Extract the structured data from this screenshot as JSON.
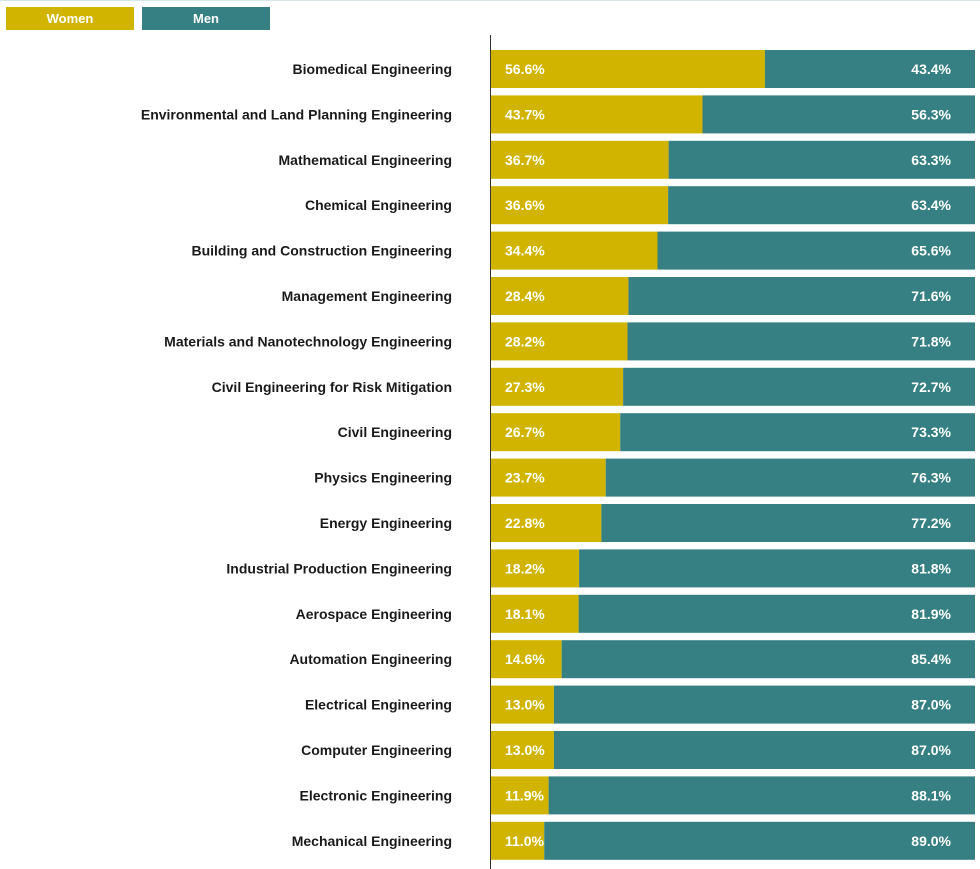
{
  "legend": {
    "women": "Women",
    "men": "Men"
  },
  "colors": {
    "women": "#d1b400",
    "men": "#367f83",
    "axis": "#333333",
    "label": "#1a1a1a",
    "value_text": "#ffffff"
  },
  "chart_data": {
    "type": "bar",
    "orientation": "horizontal",
    "stacked": true,
    "normalized_100": true,
    "categories": [
      "Biomedical Engineering",
      "Environmental and Land Planning Engineering",
      "Mathematical Engineering",
      "Chemical Engineering",
      "Building and Construction Engineering",
      "Management Engineering",
      "Materials and Nanotechnology Engineering",
      "Civil Engineering for Risk Mitigation",
      "Civil Engineering",
      "Physics Engineering",
      "Energy Engineering",
      "Industrial Production Engineering",
      "Aerospace Engineering",
      "Automation Engineering",
      "Electrical Engineering",
      "Computer Engineering",
      "Electronic Engineering",
      "Mechanical Engineering"
    ],
    "series": [
      {
        "name": "Women",
        "values": [
          56.6,
          43.7,
          36.7,
          36.6,
          34.4,
          28.4,
          28.2,
          27.3,
          26.7,
          23.7,
          22.8,
          18.2,
          18.1,
          14.6,
          13.0,
          13.0,
          11.9,
          11.0
        ]
      },
      {
        "name": "Men",
        "values": [
          43.4,
          56.3,
          63.3,
          63.4,
          65.6,
          71.6,
          71.8,
          72.7,
          73.3,
          76.3,
          77.2,
          81.8,
          81.9,
          85.4,
          87.0,
          87.0,
          88.1,
          89.0
        ]
      }
    ],
    "value_labels": {
      "women": [
        "56.6%",
        "43.7%",
        "36.7%",
        "36.6%",
        "34.4%",
        "28.4%",
        "28.2%",
        "27.3%",
        "26.7%",
        "23.7%",
        "22.8%",
        "18.2%",
        "18.1%",
        "14.6%",
        "13.0%",
        "13.0%",
        "11.9%",
        "11.0%"
      ],
      "men": [
        "43.4%",
        "56.3%",
        "63.3%",
        "63.4%",
        "65.6%",
        "71.6%",
        "71.8%",
        "72.7%",
        "73.3%",
        "76.3%",
        "77.2%",
        "81.8%",
        "81.9%",
        "85.4%",
        "87.0%",
        "87.0%",
        "88.1%",
        "89.0%"
      ]
    },
    "xlim": [
      0,
      100
    ],
    "legend_position": "top-left",
    "grid": false
  }
}
